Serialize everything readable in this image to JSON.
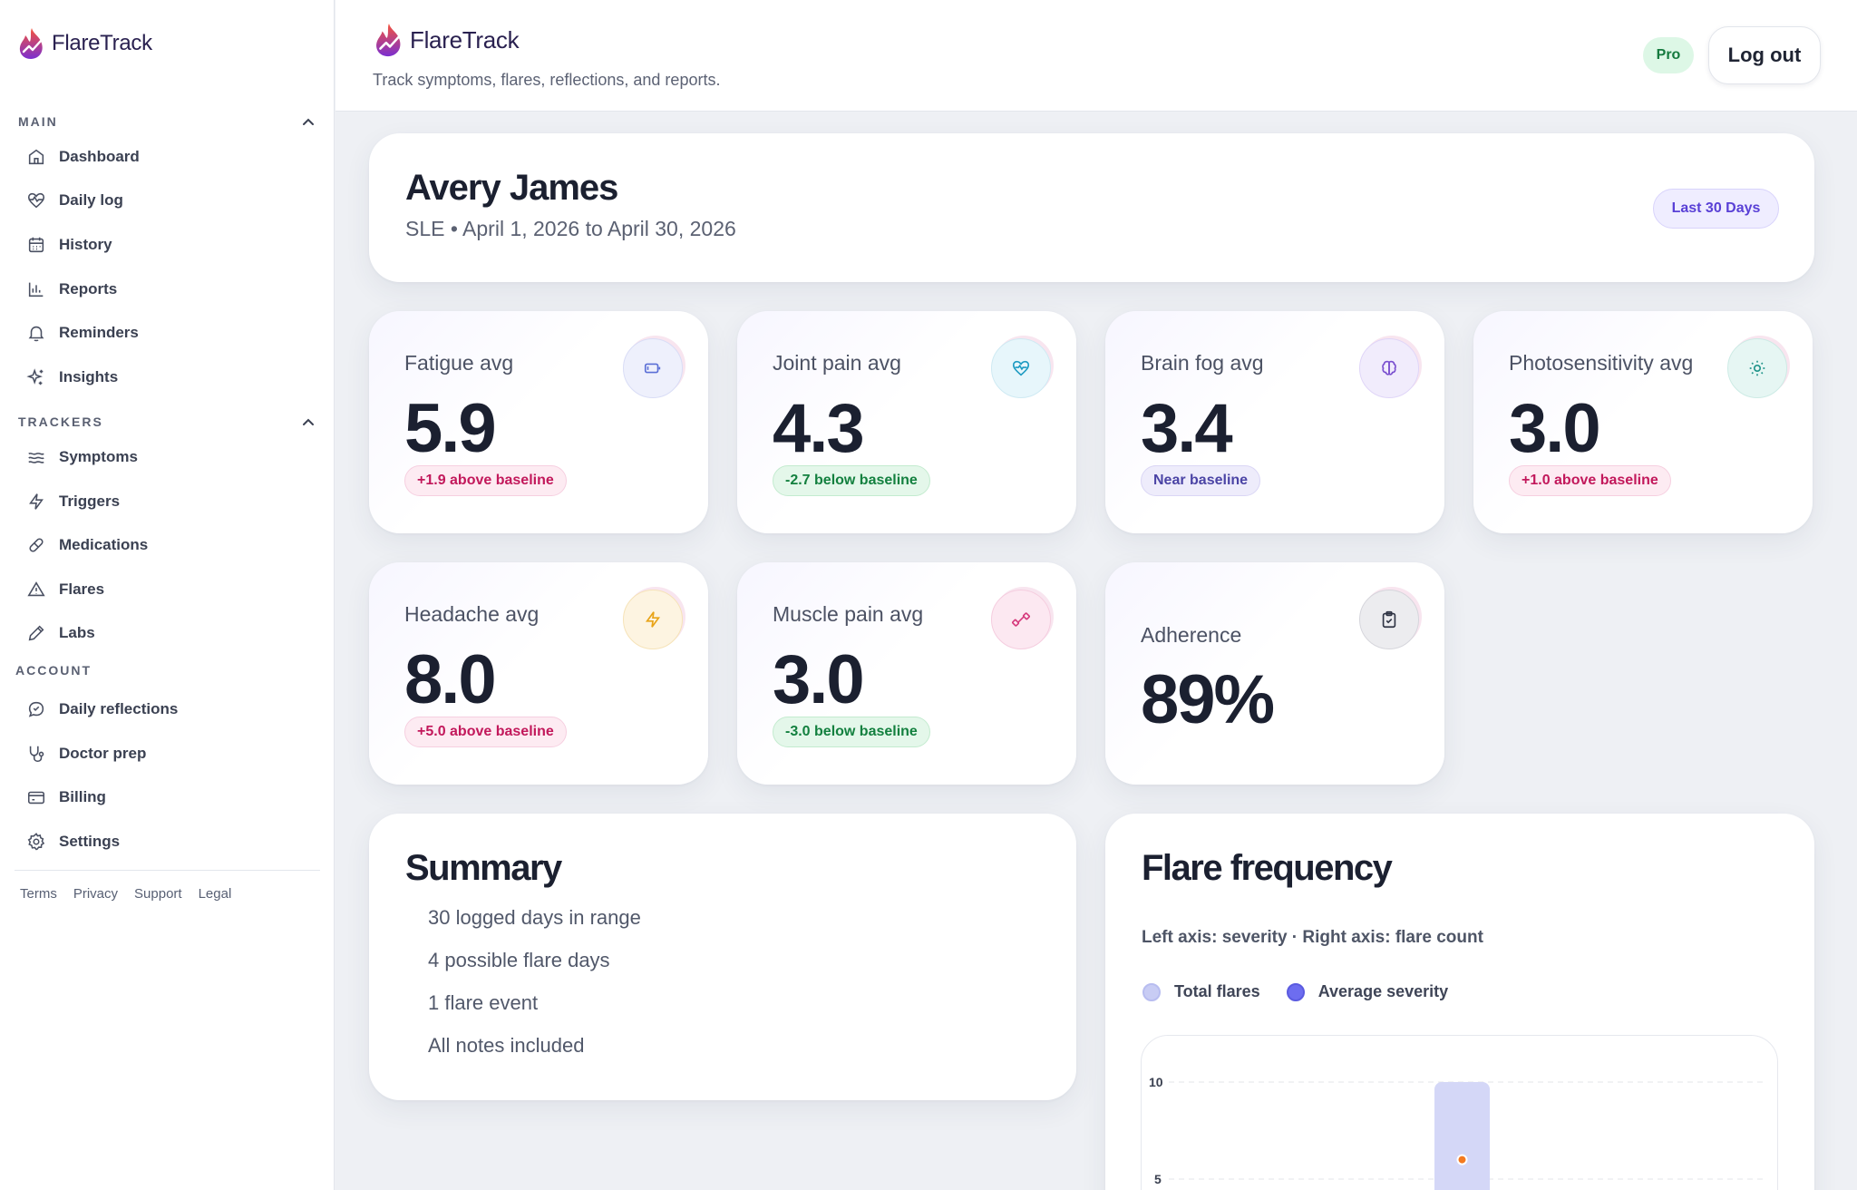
{
  "app": {
    "name": "FlareTrack",
    "tagline": "Track symptoms, flares, reflections, and reports."
  },
  "sidebar": {
    "sections": [
      {
        "title": "MAIN",
        "collapsible": true,
        "items": [
          "Dashboard",
          "Daily log",
          "History",
          "Reports",
          "Reminders",
          "Insights"
        ]
      },
      {
        "title": "TRACKERS",
        "collapsible": true,
        "items": [
          "Symptoms",
          "Triggers",
          "Medications",
          "Flares",
          "Labs"
        ]
      },
      {
        "title": "ACCOUNT",
        "collapsible": false,
        "items": [
          "Daily reflections",
          "Doctor prep",
          "Billing",
          "Settings"
        ]
      }
    ],
    "footer_links": [
      "Terms",
      "Privacy",
      "Support",
      "Legal"
    ]
  },
  "header": {
    "plan_badge": "Pro",
    "logout_label": "Log out"
  },
  "profile": {
    "name": "Avery James",
    "condition": "SLE",
    "date_range": "April 1, 2026 to April 30, 2026",
    "meta": "SLE • April 1, 2026 to April 30, 2026",
    "range_label": "Last 30 Days"
  },
  "metrics": [
    {
      "label": "Fatigue avg",
      "value": "5.9",
      "badge": "+1.9 above baseline",
      "trend": "up",
      "icon": "battery-icon",
      "icon_color": "#5b6fd6",
      "icon_bg": "#eef0fc"
    },
    {
      "label": "Joint pain avg",
      "value": "4.3",
      "badge": "-2.7 below baseline",
      "trend": "down",
      "icon": "heart-pulse-icon",
      "icon_color": "#1e9bc2",
      "icon_bg": "#e7f6fb"
    },
    {
      "label": "Brain fog avg",
      "value": "3.4",
      "badge": "Near baseline",
      "trend": "neutral",
      "icon": "brain-icon",
      "icon_color": "#7a4fcf",
      "icon_bg": "#f1ecfc"
    },
    {
      "label": "Photosensitivity avg",
      "value": "3.0",
      "badge": "+1.0 above baseline",
      "trend": "up",
      "icon": "sun-icon",
      "icon_color": "#20948a",
      "icon_bg": "#e6f6f3"
    },
    {
      "label": "Headache avg",
      "value": "8.0",
      "badge": "+5.0 above baseline",
      "trend": "up",
      "icon": "lightning-icon",
      "icon_color": "#e8a317",
      "icon_bg": "#fdf4e1"
    },
    {
      "label": "Muscle pain avg",
      "value": "3.0",
      "badge": "-3.0 below baseline",
      "trend": "down",
      "icon": "dumbbell-icon",
      "icon_color": "#d63a7d",
      "icon_bg": "#fce8f1"
    }
  ],
  "adherence": {
    "label": "Adherence",
    "value": "89%",
    "icon": "clipboard-check-icon"
  },
  "summary": {
    "title": "Summary",
    "items": [
      "30 logged days in range",
      "4 possible flare days",
      "1 flare event",
      "All notes included"
    ]
  },
  "flare_frequency": {
    "title": "Flare frequency",
    "subtitle": "Left axis: severity · Right axis: flare count",
    "legend": [
      {
        "label": "Total flares",
        "color": "#c8ccf4"
      },
      {
        "label": "Average severity",
        "color": "#6d6df0"
      }
    ]
  },
  "chart_data": {
    "type": "bar",
    "title": "Flare frequency",
    "subtitle": "Left axis: severity · Right axis: flare count",
    "y_ticks": [
      10,
      5
    ],
    "ylim": [
      0,
      10
    ],
    "series": [
      {
        "name": "Total flares",
        "type": "bar",
        "color": "#d4d7f7",
        "values": [
          10
        ]
      },
      {
        "name": "Average severity",
        "type": "point",
        "color": "#f47a1f",
        "values": [
          6
        ]
      }
    ]
  }
}
